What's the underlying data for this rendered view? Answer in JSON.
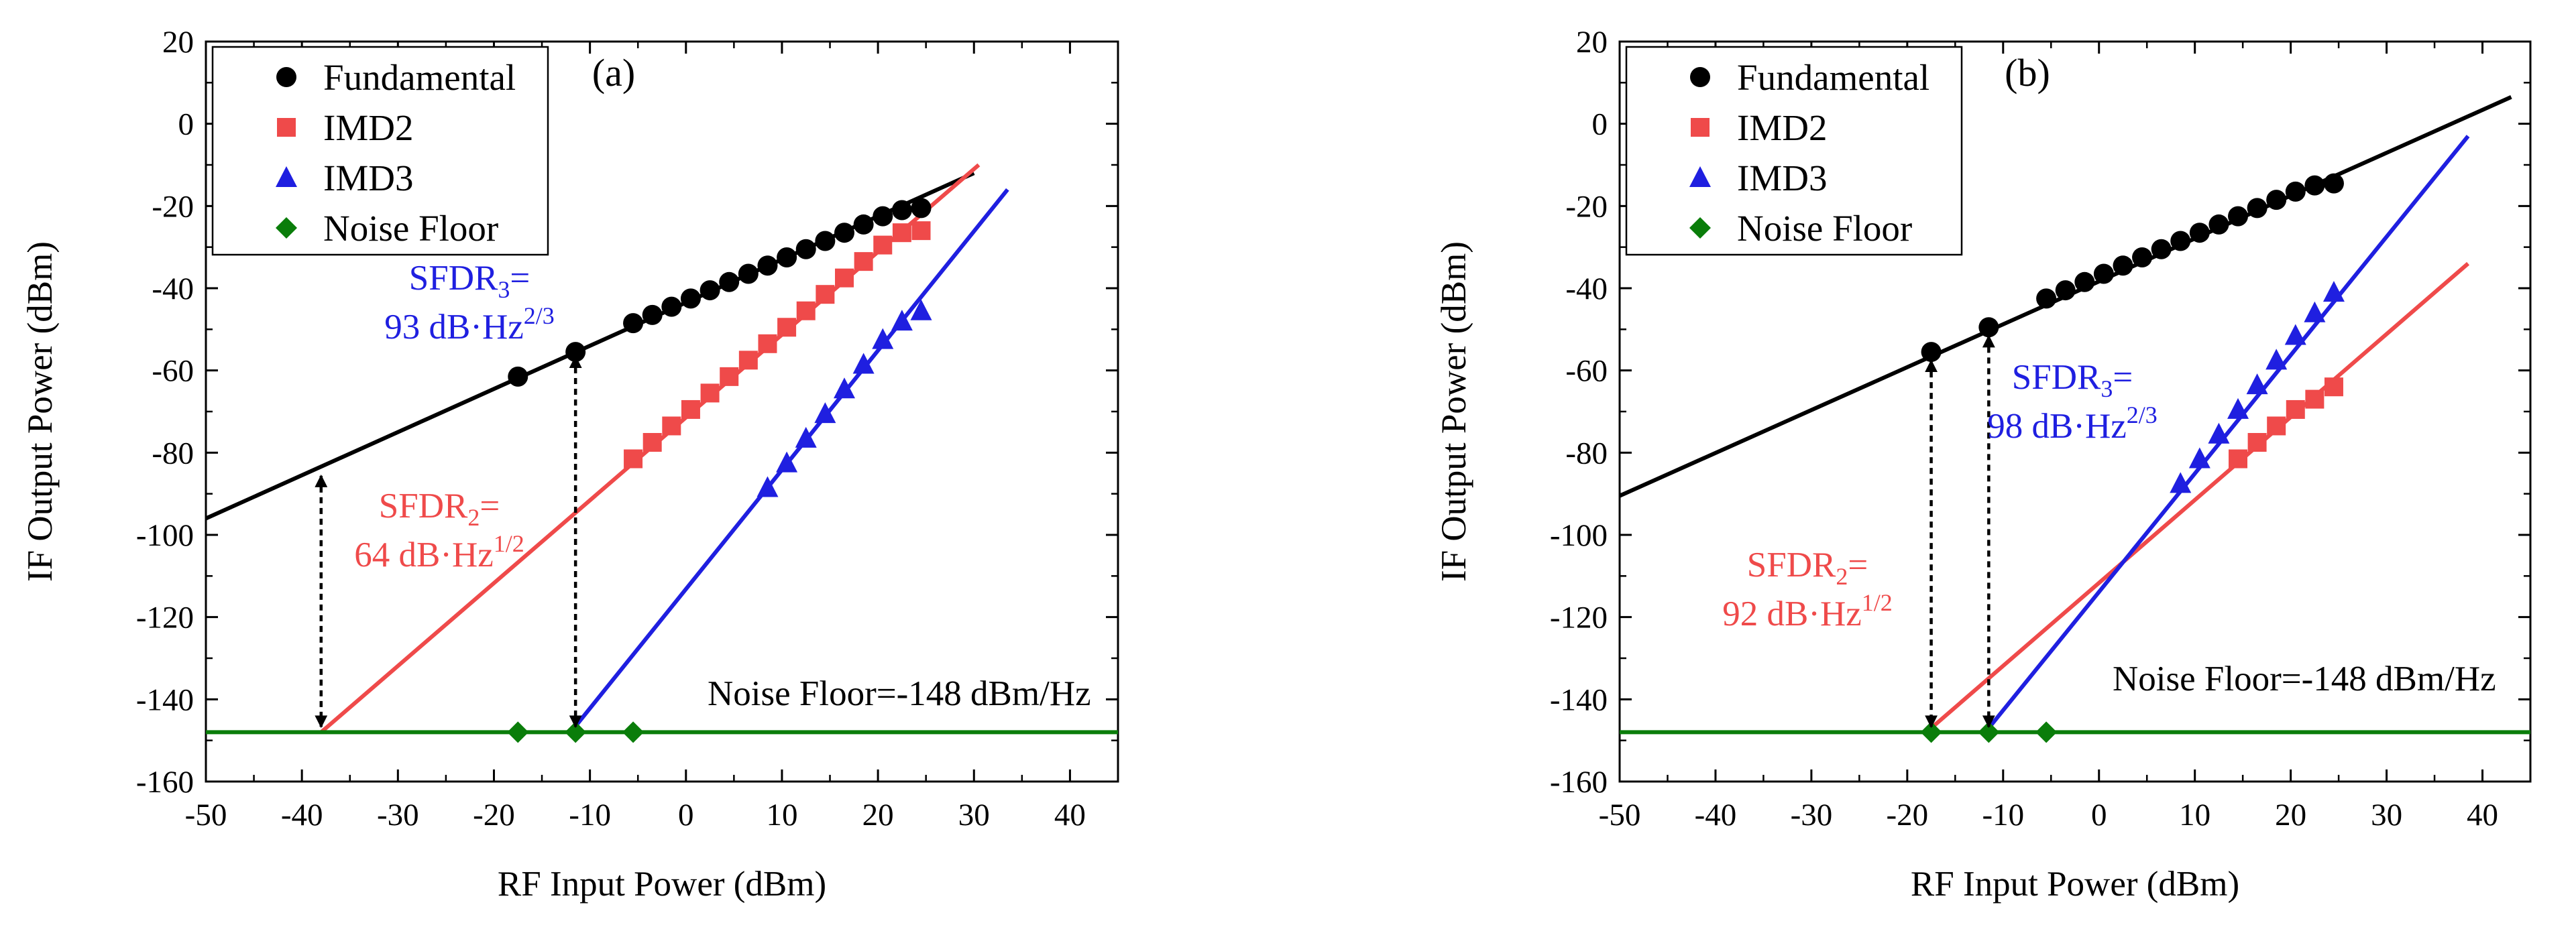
{
  "chart_data": [
    {
      "type": "scatter",
      "panel_label": "(a)",
      "xlabel": "RF Input Power (dBm)",
      "ylabel": "IF Output Power (dBm)",
      "xlim": [
        -50,
        45
      ],
      "ylim": [
        -160,
        20
      ],
      "xticks": [
        "-50",
        "-40",
        "-30",
        "-20",
        "-10",
        "0",
        "10",
        "20",
        "30",
        "40"
      ],
      "yticks": [
        "20",
        "0",
        "-20",
        "-40",
        "-60",
        "-80",
        "-100",
        "-120",
        "-140",
        "-160"
      ],
      "legend_position": "top-left",
      "colors": {
        "fundamental": "#000000",
        "imd2": "#ef4a4a",
        "imd3": "#1f1fe0",
        "noise": "#0a7d0a"
      },
      "series": [
        {
          "name": "Fundamental",
          "marker": "circle",
          "color": "#000000",
          "x": [
            -17.5,
            -11.5,
            -5.5,
            -3.5,
            -1.5,
            0.5,
            2.5,
            4.5,
            6.5,
            8.5,
            10.5,
            12.5,
            14.5,
            16.5,
            18.5,
            20.5,
            22.5,
            24.5
          ],
          "y": [
            -61.5,
            -55.5,
            -48.5,
            -46.5,
            -44.5,
            -42.5,
            -40.5,
            -38.5,
            -36.5,
            -34.5,
            -32.5,
            -30.5,
            -28.5,
            -26.5,
            -24.5,
            -22.5,
            -21.0,
            -20.5
          ]
        },
        {
          "name": "IMD2",
          "marker": "square",
          "color": "#ef4a4a",
          "x": [
            -5.5,
            -3.5,
            -1.5,
            0.5,
            2.5,
            4.5,
            6.5,
            8.5,
            10.5,
            12.5,
            14.5,
            16.5,
            18.5,
            20.5,
            22.5,
            24.5
          ],
          "y": [
            -81.5,
            -77.5,
            -73.5,
            -69.5,
            -65.5,
            -61.5,
            -57.5,
            -53.5,
            -49.5,
            -45.5,
            -41.5,
            -37.5,
            -33.5,
            -29.5,
            -26.5,
            -26.0
          ]
        },
        {
          "name": "IMD3",
          "marker": "triangle",
          "color": "#1f1fe0",
          "x": [
            8.5,
            10.5,
            12.5,
            14.5,
            16.5,
            18.5,
            20.5,
            22.5,
            24.5
          ],
          "y": [
            -88.5,
            -82.5,
            -76.5,
            -70.5,
            -64.5,
            -58.5,
            -52.5,
            -48.0,
            -45.5
          ]
        },
        {
          "name": "Noise Floor",
          "marker": "diamond",
          "color": "#0a7d0a",
          "x": [
            -17.5,
            -11.5,
            -5.5
          ],
          "y": [
            -148,
            -148,
            -148
          ]
        }
      ],
      "fit_lines": [
        {
          "series": "Fundamental",
          "color": "#000000",
          "x": [
            -50,
            30
          ],
          "y": [
            -96,
            -12
          ]
        },
        {
          "series": "IMD2",
          "color": "#ef4a4a",
          "x": [
            -38,
            30.5
          ],
          "y": [
            -148,
            -10
          ]
        },
        {
          "series": "IMD3",
          "color": "#1f1fe0",
          "x": [
            -12,
            33.5
          ],
          "y": [
            -148,
            -16
          ]
        },
        {
          "series": "Noise Floor",
          "color": "#0a7d0a",
          "x": [
            -50,
            45
          ],
          "y": [
            -148,
            -148
          ]
        }
      ],
      "arrows": [
        {
          "x": -38,
          "y_top": -84,
          "y_bottom": -148
        },
        {
          "x": -11.5,
          "y_top": -55,
          "y_bottom": -148
        }
      ],
      "annotations": {
        "sfdr2_line1": "SFDR",
        "sfdr2_sub": "2",
        "sfdr2_eq": "=",
        "sfdr2_line2": "64 dB·Hz",
        "sfdr2_sup": "1/2",
        "sfdr3_line1": "SFDR",
        "sfdr3_sub": "3",
        "sfdr3_eq": "=",
        "sfdr3_line2": "93 dB·Hz",
        "sfdr3_sup": "2/3",
        "noise": "Noise Floor=-148 dBm/Hz"
      }
    },
    {
      "type": "scatter",
      "panel_label": "(b)",
      "xlabel": "RF Input Power (dBm)",
      "ylabel": "IF Output Power (dBm)",
      "xlim": [
        -50,
        45
      ],
      "ylim": [
        -160,
        20
      ],
      "xticks": [
        "-50",
        "-40",
        "-30",
        "-20",
        "-10",
        "0",
        "10",
        "20",
        "30",
        "40"
      ],
      "yticks": [
        "20",
        "0",
        "-20",
        "-40",
        "-60",
        "-80",
        "-100",
        "-120",
        "-140",
        "-160"
      ],
      "legend_position": "top-left",
      "colors": {
        "fundamental": "#000000",
        "imd2": "#ef4a4a",
        "imd3": "#1f1fe0",
        "noise": "#0a7d0a"
      },
      "series": [
        {
          "name": "Fundamental",
          "marker": "circle",
          "color": "#000000",
          "x": [
            -17.5,
            -11.5,
            -5.5,
            -3.5,
            -1.5,
            0.5,
            2.5,
            4.5,
            6.5,
            8.5,
            10.5,
            12.5,
            14.5,
            16.5,
            18.5,
            20.5,
            22.5,
            24.5
          ],
          "y": [
            -55.5,
            -49.5,
            -42.5,
            -40.5,
            -38.5,
            -36.5,
            -34.5,
            -32.5,
            -30.5,
            -28.5,
            -26.5,
            -24.5,
            -22.5,
            -20.5,
            -18.5,
            -16.5,
            -15.0,
            -14.5
          ]
        },
        {
          "name": "IMD2",
          "marker": "square",
          "color": "#ef4a4a",
          "x": [
            14.5,
            16.5,
            18.5,
            20.5,
            22.5,
            24.5
          ],
          "y": [
            -81.5,
            -77.5,
            -73.5,
            -69.5,
            -67.0,
            -64.0
          ]
        },
        {
          "name": "IMD3",
          "marker": "triangle",
          "color": "#1f1fe0",
          "x": [
            8.5,
            10.5,
            12.5,
            14.5,
            16.5,
            18.5,
            20.5,
            22.5,
            24.5
          ],
          "y": [
            -87.5,
            -81.5,
            -75.5,
            -69.5,
            -63.5,
            -57.5,
            -51.5,
            -46.0,
            -41.0
          ]
        },
        {
          "name": "Noise Floor",
          "marker": "diamond",
          "color": "#0a7d0a",
          "x": [
            -17.5,
            -11.5,
            -5.5
          ],
          "y": [
            -148,
            -148,
            -148
          ]
        }
      ],
      "fit_lines": [
        {
          "series": "Fundamental",
          "color": "#000000",
          "x": [
            -50,
            43
          ],
          "y": [
            -90.5,
            6.5
          ]
        },
        {
          "series": "IMD2",
          "color": "#ef4a4a",
          "x": [
            -17.5,
            38.5
          ],
          "y": [
            -147,
            -34
          ]
        },
        {
          "series": "IMD3",
          "color": "#1f1fe0",
          "x": [
            -11.5,
            38.5
          ],
          "y": [
            -147,
            -3
          ]
        },
        {
          "series": "Noise Floor",
          "color": "#0a7d0a",
          "x": [
            -50,
            45
          ],
          "y": [
            -148,
            -148
          ]
        }
      ],
      "arrows": [
        {
          "x": -17.5,
          "y_top": -56,
          "y_bottom": -148
        },
        {
          "x": -11.5,
          "y_top": -50,
          "y_bottom": -148
        }
      ],
      "annotations": {
        "sfdr2_line1": "SFDR",
        "sfdr2_sub": "2",
        "sfdr2_eq": "=",
        "sfdr2_line2": "92 dB·Hz",
        "sfdr2_sup": "1/2",
        "sfdr3_line1": "SFDR",
        "sfdr3_sub": "3",
        "sfdr3_eq": "=",
        "sfdr3_line2": "98 dB·Hz",
        "sfdr3_sup": "2/3",
        "noise": "Noise Floor=-148 dBm/Hz"
      }
    }
  ]
}
